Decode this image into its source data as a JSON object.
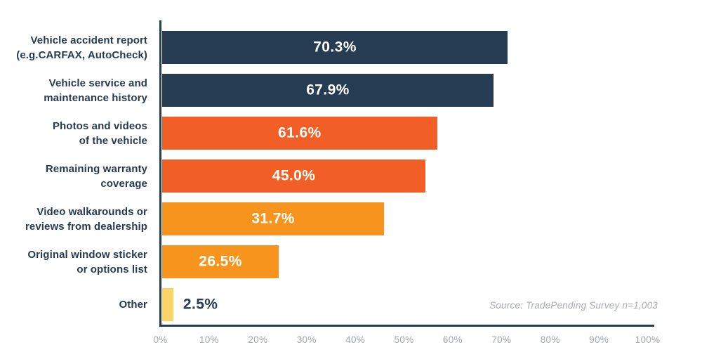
{
  "chart_data": {
    "type": "bar",
    "orientation": "horizontal",
    "title": "",
    "categories": [
      "Vehicle accident report (e.g.CARFAX, AutoCheck)",
      "Vehicle service and maintenance history",
      "Photos and videos of the vehicle",
      "Remaining warranty coverage",
      "Video walkarounds or reviews from dealership",
      "Original window sticker or options list",
      "Other"
    ],
    "values": [
      70.3,
      67.9,
      61.6,
      45.0,
      31.7,
      26.5,
      2.5
    ],
    "bars": [
      {
        "label_lines": [
          "Vehicle accident report",
          "(e.g.CARFAX, AutoCheck)"
        ],
        "value": 70.3,
        "value_label": "70.3%",
        "color_key": "navy",
        "display_pct": 71.1,
        "value_placement": "inside"
      },
      {
        "label_lines": [
          "Vehicle service and",
          "maintenance history"
        ],
        "value": 67.9,
        "value_label": "67.9%",
        "color_key": "navy",
        "display_pct": 68.2,
        "value_placement": "inside"
      },
      {
        "label_lines": [
          "Photos and videos",
          "of the vehicle"
        ],
        "value": 61.6,
        "value_label": "61.6%",
        "color_key": "orange",
        "display_pct": 56.6,
        "value_placement": "inside"
      },
      {
        "label_lines": [
          "Remaining warranty",
          "coverage"
        ],
        "value": 45.0,
        "value_label": "45.0%",
        "color_key": "orange",
        "display_pct": 54.2,
        "value_placement": "inside"
      },
      {
        "label_lines": [
          "Video walkarounds or",
          "reviews from dealership"
        ],
        "value": 31.7,
        "value_label": "31.7%",
        "color_key": "orange_light",
        "display_pct": 45.7,
        "value_placement": "inside"
      },
      {
        "label_lines": [
          "Original window sticker",
          "or options list"
        ],
        "value": 26.5,
        "value_label": "26.5%",
        "color_key": "orange_light",
        "display_pct": 24.0,
        "value_placement": "inside"
      },
      {
        "label_lines": [
          "Other"
        ],
        "value": 2.5,
        "value_label": "2.5%",
        "color_key": "yellow",
        "display_pct": 2.3,
        "value_placement": "outside"
      }
    ],
    "x_axis": {
      "ticks": [
        "0%",
        "10%",
        "20%",
        "30%",
        "40%",
        "50%",
        "60%",
        "70%",
        "80%",
        "90%",
        "100%"
      ],
      "min": 0,
      "max": 100
    },
    "grid": false,
    "legend": false,
    "source_note": "Source: TradePending Survey n=1,003",
    "colors": {
      "navy": "#253C52",
      "orange": "#F15F26",
      "orange_light": "#F7941E",
      "yellow": "#FBD466",
      "value_text": "#FFFFFF",
      "label_text": "#253C52",
      "tick_text": "#A3A7AE",
      "source_text": "#A8ABB1",
      "axis_line": "#253C52"
    }
  }
}
